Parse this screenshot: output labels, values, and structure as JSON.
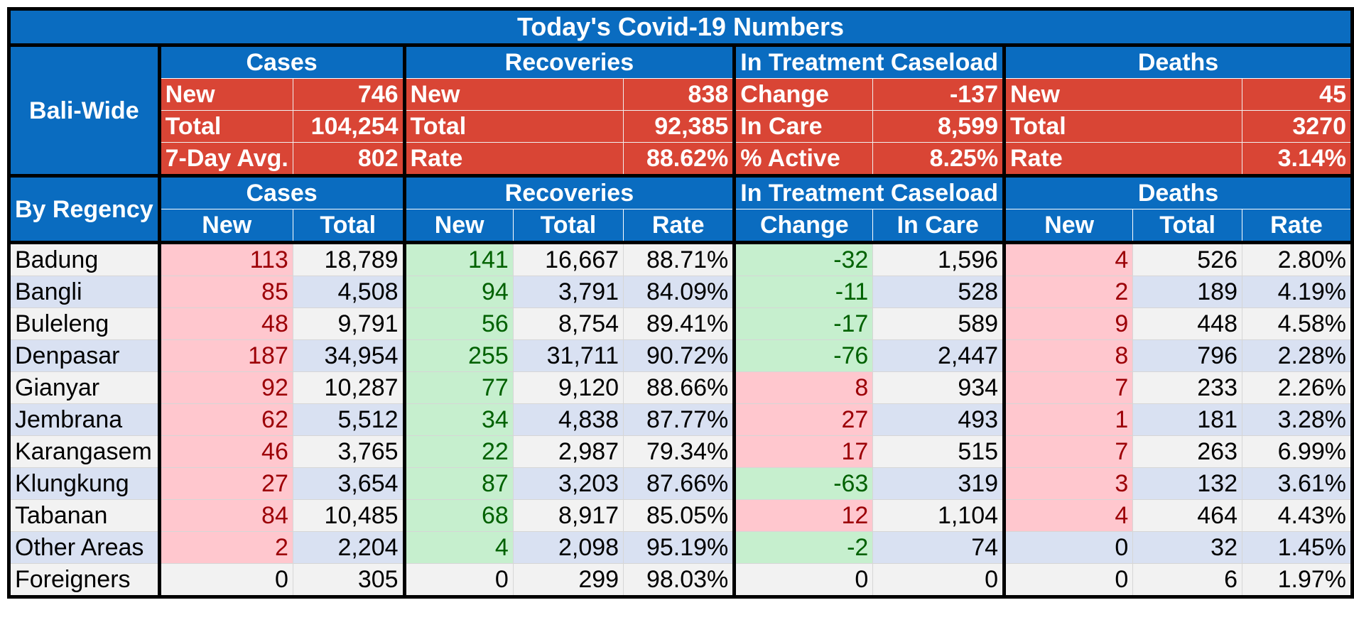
{
  "title": "Today's Covid-19 Numbers",
  "bali_wide": {
    "label": "Bali-Wide",
    "groups": [
      "Cases",
      "Recoveries",
      "In Treatment Caseload",
      "Deaths"
    ],
    "rows": [
      {
        "cases_label": "New",
        "cases_val": "746",
        "rec_label": "New",
        "rec_val": "838",
        "treat_label": "Change",
        "treat_val": "-137",
        "deaths_label": "New",
        "deaths_val": "45"
      },
      {
        "cases_label": "Total",
        "cases_val": "104,254",
        "rec_label": "Total",
        "rec_val": "92,385",
        "treat_label": "In Care",
        "treat_val": "8,599",
        "deaths_label": "Total",
        "deaths_val": "3270"
      },
      {
        "cases_label": "7-Day Avg.",
        "cases_val": "802",
        "rec_label": "Rate",
        "rec_val": "88.62%",
        "treat_label": "% Active",
        "treat_val": "8.25%",
        "deaths_label": "Rate",
        "deaths_val": "3.14%"
      }
    ]
  },
  "by_regency": {
    "label": "By Regency",
    "groups": [
      "Cases",
      "Recoveries",
      "In Treatment Caseload",
      "Deaths"
    ],
    "columns": [
      "New",
      "Total",
      "New",
      "Total",
      "Rate",
      "Change",
      "In Care",
      "New",
      "Total",
      "Rate"
    ],
    "rows": [
      {
        "name": "Badung",
        "cases_new": "113",
        "cases_total": "18,789",
        "rec_new": "141",
        "rec_total": "16,667",
        "rec_rate": "88.71%",
        "change": "-32",
        "in_care": "1,596",
        "deaths_new": "4",
        "deaths_total": "526",
        "deaths_rate": "2.80%"
      },
      {
        "name": "Bangli",
        "cases_new": "85",
        "cases_total": "4,508",
        "rec_new": "94",
        "rec_total": "3,791",
        "rec_rate": "84.09%",
        "change": "-11",
        "in_care": "528",
        "deaths_new": "2",
        "deaths_total": "189",
        "deaths_rate": "4.19%"
      },
      {
        "name": "Buleleng",
        "cases_new": "48",
        "cases_total": "9,791",
        "rec_new": "56",
        "rec_total": "8,754",
        "rec_rate": "89.41%",
        "change": "-17",
        "in_care": "589",
        "deaths_new": "9",
        "deaths_total": "448",
        "deaths_rate": "4.58%"
      },
      {
        "name": "Denpasar",
        "cases_new": "187",
        "cases_total": "34,954",
        "rec_new": "255",
        "rec_total": "31,711",
        "rec_rate": "90.72%",
        "change": "-76",
        "in_care": "2,447",
        "deaths_new": "8",
        "deaths_total": "796",
        "deaths_rate": "2.28%"
      },
      {
        "name": "Gianyar",
        "cases_new": "92",
        "cases_total": "10,287",
        "rec_new": "77",
        "rec_total": "9,120",
        "rec_rate": "88.66%",
        "change": "8",
        "in_care": "934",
        "deaths_new": "7",
        "deaths_total": "233",
        "deaths_rate": "2.26%"
      },
      {
        "name": "Jembrana",
        "cases_new": "62",
        "cases_total": "5,512",
        "rec_new": "34",
        "rec_total": "4,838",
        "rec_rate": "87.77%",
        "change": "27",
        "in_care": "493",
        "deaths_new": "1",
        "deaths_total": "181",
        "deaths_rate": "3.28%"
      },
      {
        "name": "Karangasem",
        "cases_new": "46",
        "cases_total": "3,765",
        "rec_new": "22",
        "rec_total": "2,987",
        "rec_rate": "79.34%",
        "change": "17",
        "in_care": "515",
        "deaths_new": "7",
        "deaths_total": "263",
        "deaths_rate": "6.99%"
      },
      {
        "name": "Klungkung",
        "cases_new": "27",
        "cases_total": "3,654",
        "rec_new": "87",
        "rec_total": "3,203",
        "rec_rate": "87.66%",
        "change": "-63",
        "in_care": "319",
        "deaths_new": "3",
        "deaths_total": "132",
        "deaths_rate": "3.61%"
      },
      {
        "name": "Tabanan",
        "cases_new": "84",
        "cases_total": "10,485",
        "rec_new": "68",
        "rec_total": "8,917",
        "rec_rate": "85.05%",
        "change": "12",
        "in_care": "1,104",
        "deaths_new": "4",
        "deaths_total": "464",
        "deaths_rate": "4.43%"
      },
      {
        "name": "Other Areas",
        "cases_new": "2",
        "cases_total": "2,204",
        "rec_new": "4",
        "rec_total": "2,098",
        "rec_rate": "95.19%",
        "change": "-2",
        "in_care": "74",
        "deaths_new": "0",
        "deaths_total": "32",
        "deaths_rate": "1.45%"
      },
      {
        "name": "Foreigners",
        "cases_new": "0",
        "cases_total": "305",
        "rec_new": "0",
        "rec_total": "299",
        "rec_rate": "98.03%",
        "change": "0",
        "in_care": "0",
        "deaths_new": "0",
        "deaths_total": "6",
        "deaths_rate": "1.97%"
      }
    ]
  },
  "colors": {
    "header_blue": "#0a6cc0",
    "summary_red": "#d94535",
    "increase_fill": "#ffc7ce",
    "increase_text": "#9c0006",
    "decrease_fill": "#c6efce",
    "decrease_text": "#006100",
    "row_alt_blue": "#d9e1f2",
    "row_grey": "#f2f2f2"
  }
}
